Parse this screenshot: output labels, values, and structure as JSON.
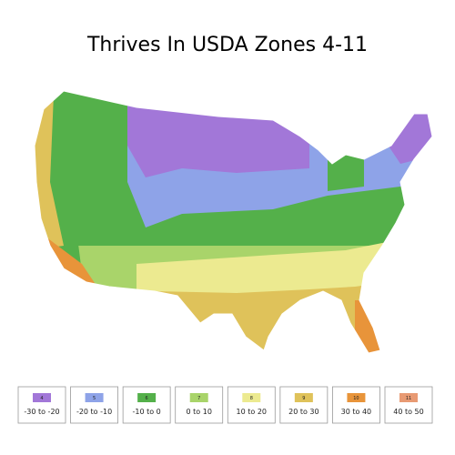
{
  "title": "Thrives In USDA Zones 4-11",
  "legend": {
    "items": [
      {
        "zone": "4",
        "range": "-30 to -20",
        "color": "#a277d8"
      },
      {
        "zone": "5",
        "range": "-20 to -10",
        "color": "#8ea3e8"
      },
      {
        "zone": "6",
        "range": "-10 to 0",
        "color": "#54b04a"
      },
      {
        "zone": "7",
        "range": "0 to 10",
        "color": "#a9d46a"
      },
      {
        "zone": "8",
        "range": "10 to 20",
        "color": "#ecea90"
      },
      {
        "zone": "9",
        "range": "20 to 30",
        "color": "#dfc25a"
      },
      {
        "zone": "10",
        "range": "30 to 40",
        "color": "#e8943a"
      },
      {
        "zone": "11",
        "range": "40 to 50",
        "color": "#e89a73"
      }
    ]
  }
}
